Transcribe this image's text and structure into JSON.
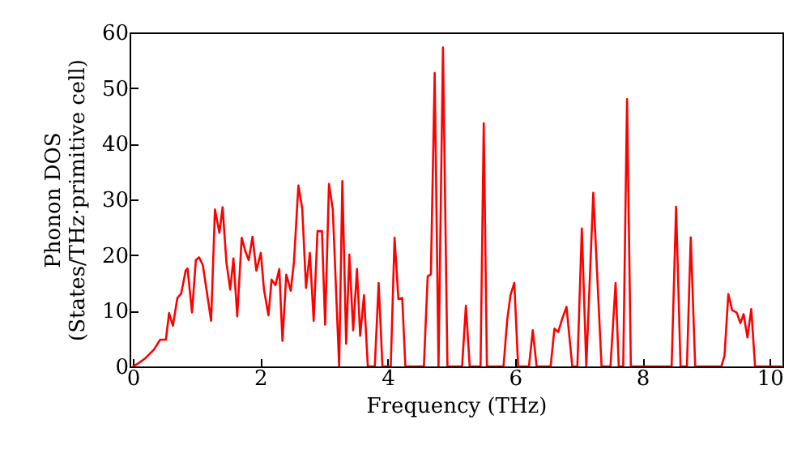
{
  "chart_data": {
    "type": "line",
    "xlabel": "Frequency (THz)",
    "ylabel": "Phonon DOS\n(States/THz·primitive cell)",
    "xlim": [
      -0.05,
      10.2
    ],
    "xticks": [
      0,
      2,
      4,
      6,
      8,
      10
    ],
    "ylim": [
      0,
      60
    ],
    "yticks": [
      0,
      10,
      20,
      30,
      40,
      50,
      60
    ],
    "grid": false,
    "series": [
      {
        "color": "#ff0000",
        "x": [
          0,
          0.08,
          0.2,
          0.33,
          0.43,
          0.52,
          0.57,
          0.63,
          0.7,
          0.76,
          0.83,
          0.86,
          0.93,
          0.99,
          1.04,
          1.1,
          1.23,
          1.29,
          1.36,
          1.41,
          1.47,
          1.53,
          1.58,
          1.64,
          1.71,
          1.77,
          1.82,
          1.88,
          1.94,
          2.01,
          2.06,
          2.13,
          2.18,
          2.24,
          2.3,
          2.35,
          2.41,
          2.48,
          2.53,
          2.6,
          2.66,
          2.72,
          2.78,
          2.84,
          2.9,
          2.97,
          3.02,
          3.08,
          3.14,
          3.24,
          3.29,
          3.35,
          3.4,
          3.46,
          3.52,
          3.57,
          3.63,
          3.69,
          3.8,
          3.86,
          3.92,
          4.05,
          4.11,
          4.17,
          4.23,
          4.28,
          4.57,
          4.63,
          4.68,
          4.74,
          4.8,
          4.87,
          4.94,
          5.17,
          5.23,
          5.29,
          5.46,
          5.51,
          5.56,
          5.82,
          5.88,
          5.93,
          5.99,
          6.05,
          6.22,
          6.28,
          6.34,
          6.56,
          6.62,
          6.68,
          6.74,
          6.81,
          6.9,
          6.98,
          7.05,
          7.12,
          7.23,
          7.36,
          7.5,
          7.58,
          7.63,
          7.7,
          7.76,
          7.82,
          8.46,
          8.53,
          8.6,
          8.7,
          8.76,
          8.83,
          9.24,
          9.29,
          9.35,
          9.41,
          9.48,
          9.54,
          9.59,
          9.65,
          9.71,
          9.77,
          10.19
        ],
        "values": [
          0,
          0.5,
          1.5,
          3,
          4.8,
          4.8,
          9.6,
          7.3,
          12.3,
          13.1,
          17.2,
          17.6,
          9.7,
          19.1,
          19.6,
          18.2,
          8.2,
          28.2,
          24,
          28.6,
          18.7,
          13.8,
          19.4,
          9,
          23.1,
          20.6,
          19.1,
          23.3,
          17.2,
          20.4,
          13.8,
          9.2,
          15.6,
          14.6,
          17.5,
          4.6,
          16.5,
          13.6,
          18.7,
          32.5,
          28.4,
          14.1,
          20.4,
          8.2,
          24.3,
          24.3,
          7.5,
          32.8,
          28.2,
          0,
          33.3,
          4.1,
          20.1,
          6.5,
          17.5,
          5.5,
          12.8,
          0,
          0,
          15,
          0,
          0,
          23.1,
          12.1,
          12.3,
          0,
          0,
          16.2,
          16.5,
          52.7,
          0,
          57.3,
          0,
          0,
          10.9,
          0,
          0,
          43.7,
          0,
          0,
          8.5,
          12.8,
          15,
          0,
          0,
          6.5,
          0,
          0,
          6.8,
          6.2,
          8.5,
          10.7,
          0,
          0,
          24.8,
          0,
          31.2,
          0,
          0,
          15,
          0,
          0,
          48,
          0,
          0,
          28.7,
          0,
          0,
          23.2,
          0,
          0,
          1.9,
          13,
          10.1,
          9.7,
          7.8,
          9.4,
          5.2,
          10.3,
          0,
          0
        ]
      }
    ]
  }
}
